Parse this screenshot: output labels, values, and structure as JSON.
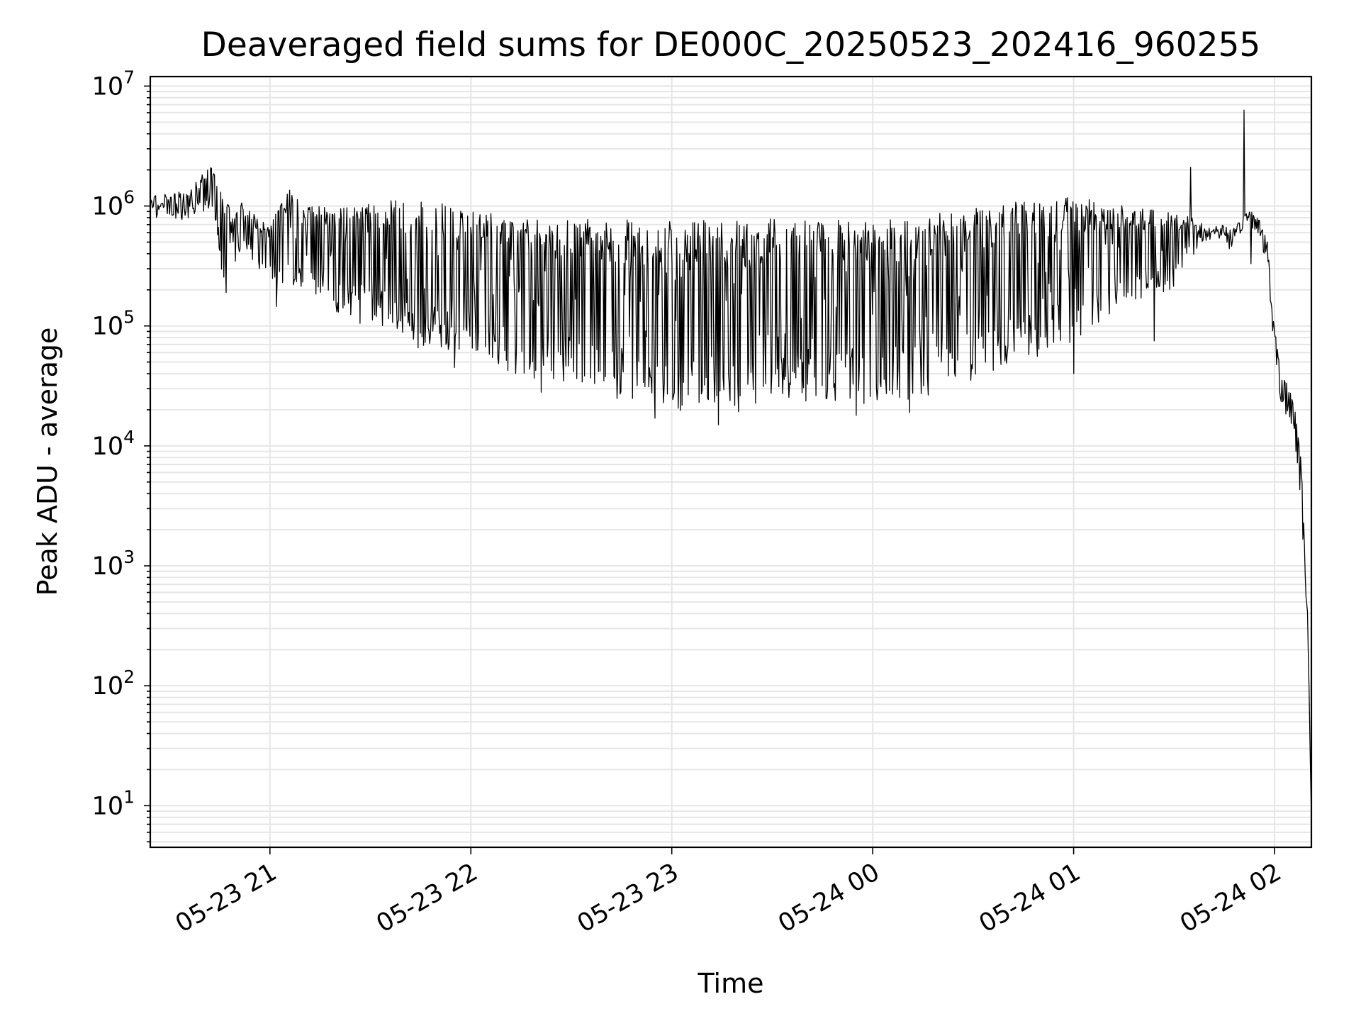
{
  "chart_data": {
    "type": "line",
    "title": "Deaveraged field sums for DE000C_20250523_202416_960255",
    "xlabel": "Time",
    "ylabel": "Peak ADU - average",
    "yscale": "log",
    "ylim": [
      4.5,
      12000000
    ],
    "xlim": [
      "2025-05-23 20:24:16",
      "2025-05-24 02:11:00"
    ],
    "grid": true,
    "line_color": "#000000",
    "x_ticks": [
      {
        "t": "2025-05-23 21:00",
        "label": "05-23 21"
      },
      {
        "t": "2025-05-23 22:00",
        "label": "05-23 22"
      },
      {
        "t": "2025-05-23 23:00",
        "label": "05-23 23"
      },
      {
        "t": "2025-05-24 00:00",
        "label": "05-24 00"
      },
      {
        "t": "2025-05-24 01:00",
        "label": "05-24 01"
      },
      {
        "t": "2025-05-24 02:00",
        "label": "05-24 02"
      }
    ],
    "y_ticks": [
      {
        "value": 10,
        "base": "10",
        "exp": "1"
      },
      {
        "value": 100,
        "base": "10",
        "exp": "2"
      },
      {
        "value": 1000,
        "base": "10",
        "exp": "3"
      },
      {
        "value": 10000,
        "base": "10",
        "exp": "4"
      },
      {
        "value": 100000,
        "base": "10",
        "exp": "5"
      },
      {
        "value": 1000000,
        "base": "10",
        "exp": "6"
      },
      {
        "value": 10000000,
        "base": "10",
        "exp": "7"
      }
    ],
    "series": [
      {
        "upper": [
          [
            "2025-05-23 20:24:16",
            1200000
          ],
          [
            "2025-05-23 20:30",
            1300000
          ],
          [
            "2025-05-23 20:37",
            1500000
          ],
          [
            "2025-05-23 20:43",
            2300000
          ],
          [
            "2025-05-23 20:46",
            1200000
          ],
          [
            "2025-05-23 20:49",
            900000
          ],
          [
            "2025-05-23 20:52",
            1100000
          ],
          [
            "2025-05-23 20:56",
            800000
          ],
          [
            "2025-05-23 21:00",
            700000
          ],
          [
            "2025-05-23 21:03",
            1100000
          ],
          [
            "2025-05-23 21:06",
            1400000
          ],
          [
            "2025-05-23 21:10",
            1000000
          ],
          [
            "2025-05-23 21:15",
            1000000
          ],
          [
            "2025-05-23 21:20",
            1000000
          ],
          [
            "2025-05-23 21:30",
            1050000
          ],
          [
            "2025-05-23 21:40",
            1150000
          ],
          [
            "2025-05-23 21:50",
            1100000
          ],
          [
            "2025-05-23 22:00",
            950000
          ],
          [
            "2025-05-23 22:10",
            850000
          ],
          [
            "2025-05-23 22:20",
            800000
          ],
          [
            "2025-05-23 22:40",
            800000
          ],
          [
            "2025-05-23 23:00",
            780000
          ],
          [
            "2025-05-23 23:30",
            780000
          ],
          [
            "2025-05-23 23:50",
            780000
          ],
          [
            "2025-05-24 00:00",
            780000
          ],
          [
            "2025-05-24 00:15",
            850000
          ],
          [
            "2025-05-24 00:30",
            950000
          ],
          [
            "2025-05-24 00:45",
            1100000
          ],
          [
            "2025-05-24 01:00",
            1200000
          ],
          [
            "2025-05-24 01:15",
            1000000
          ],
          [
            "2025-05-24 01:30",
            900000
          ],
          [
            "2025-05-24 01:35",
            800000
          ],
          [
            "2025-05-24 01:40",
            750000
          ],
          [
            "2025-05-24 01:45",
            700000
          ],
          [
            "2025-05-24 01:48",
            650000
          ],
          [
            "2025-05-24 01:50",
            800000
          ],
          [
            "2025-05-24 01:52",
            1000000
          ],
          [
            "2025-05-24 01:55",
            900000
          ],
          [
            "2025-05-24 01:58",
            500000
          ],
          [
            "2025-05-24 02:00",
            100000
          ],
          [
            "2025-05-24 02:02",
            40000
          ],
          [
            "2025-05-24 02:05",
            30000
          ],
          [
            "2025-05-24 02:07",
            15000
          ],
          [
            "2025-05-24 02:09",
            3000
          ],
          [
            "2025-05-24 02:10",
            300
          ],
          [
            "2025-05-24 02:11",
            8
          ]
        ],
        "lower": [
          [
            "2025-05-23 20:24:16",
            800000
          ],
          [
            "2025-05-23 20:35",
            750000
          ],
          [
            "2025-05-23 20:43",
            1000000
          ],
          [
            "2025-05-23 20:46",
            200000
          ],
          [
            "2025-05-23 20:52",
            400000
          ],
          [
            "2025-05-23 21:00",
            250000
          ],
          [
            "2025-05-23 21:10",
            200000
          ],
          [
            "2025-05-23 21:20",
            130000
          ],
          [
            "2025-05-23 21:30",
            110000
          ],
          [
            "2025-05-23 21:40",
            70000
          ],
          [
            "2025-05-23 21:50",
            60000
          ],
          [
            "2025-05-23 22:00",
            55000
          ],
          [
            "2025-05-23 22:10",
            40000
          ],
          [
            "2025-05-23 22:20",
            35000
          ],
          [
            "2025-05-23 22:40",
            25000
          ],
          [
            "2025-05-23 23:00",
            20000
          ],
          [
            "2025-05-23 23:15",
            17000
          ],
          [
            "2025-05-23 23:30",
            22000
          ],
          [
            "2025-05-23 23:50",
            24000
          ],
          [
            "2025-05-24 00:00",
            22000
          ],
          [
            "2025-05-24 00:15",
            25000
          ],
          [
            "2025-05-24 00:30",
            35000
          ],
          [
            "2025-05-24 00:45",
            50000
          ],
          [
            "2025-05-24 01:00",
            70000
          ],
          [
            "2025-05-24 01:15",
            150000
          ],
          [
            "2025-05-24 01:30",
            200000
          ],
          [
            "2025-05-24 01:35",
            350000
          ],
          [
            "2025-05-24 01:40",
            500000
          ],
          [
            "2025-05-24 01:45",
            550000
          ],
          [
            "2025-05-24 01:48",
            350000
          ],
          [
            "2025-05-24 01:50",
            600000
          ],
          [
            "2025-05-24 01:52",
            700000
          ],
          [
            "2025-05-24 01:55",
            600000
          ],
          [
            "2025-05-24 01:58",
            300000
          ],
          [
            "2025-05-24 02:00",
            50000
          ],
          [
            "2025-05-24 02:02",
            20000
          ],
          [
            "2025-05-24 02:05",
            15000
          ],
          [
            "2025-05-24 02:07",
            6000
          ],
          [
            "2025-05-24 02:09",
            1000
          ],
          [
            "2025-05-24 02:10",
            100
          ],
          [
            "2025-05-24 02:11",
            8
          ]
        ],
        "spikes": [
          [
            "2025-05-23 20:47",
            190000
          ],
          [
            "2025-05-23 21:02",
            145000
          ],
          [
            "2025-05-23 21:27",
            105000
          ],
          [
            "2025-05-23 21:55",
            45000
          ],
          [
            "2025-05-23 22:21",
            28000
          ],
          [
            "2025-05-23 22:55",
            17000
          ],
          [
            "2025-05-23 23:14",
            15000
          ],
          [
            "2025-05-23 23:55",
            18000
          ],
          [
            "2025-05-24 00:11",
            19000
          ],
          [
            "2025-05-24 01:00",
            40000
          ],
          [
            "2025-05-24 01:24",
            75000
          ],
          [
            "2025-05-24 01:35",
            2100000
          ],
          [
            "2025-05-24 01:51",
            6300000
          ],
          [
            "2025-05-24 01:53",
            330000
          ]
        ]
      }
    ]
  }
}
